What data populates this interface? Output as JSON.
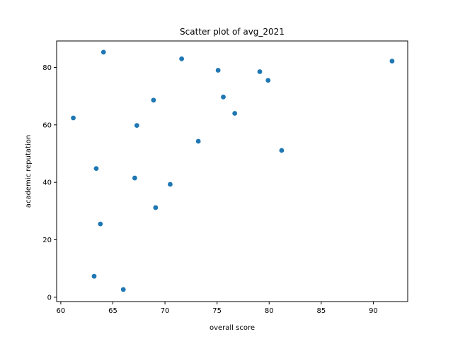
{
  "chart_data": {
    "type": "scatter",
    "title": "Scatter plot of avg_2021",
    "xlabel": "overall score",
    "ylabel": "academic reputation",
    "xlim": [
      59.6,
      93.3
    ],
    "ylim": [
      -1.5,
      89.2
    ],
    "xticks": [
      60,
      65,
      70,
      75,
      80,
      85,
      90
    ],
    "yticks": [
      0,
      20,
      40,
      60,
      80
    ],
    "grid": false,
    "marker_color": "#1f77b4",
    "points": [
      {
        "x": 61.2,
        "y": 62.4
      },
      {
        "x": 63.2,
        "y": 7.3
      },
      {
        "x": 63.4,
        "y": 44.8
      },
      {
        "x": 63.8,
        "y": 25.5
      },
      {
        "x": 64.1,
        "y": 85.3
      },
      {
        "x": 66.0,
        "y": 2.7
      },
      {
        "x": 67.1,
        "y": 41.5
      },
      {
        "x": 67.3,
        "y": 59.8
      },
      {
        "x": 68.9,
        "y": 68.6
      },
      {
        "x": 69.1,
        "y": 31.2
      },
      {
        "x": 70.5,
        "y": 39.3
      },
      {
        "x": 71.6,
        "y": 83.0
      },
      {
        "x": 73.2,
        "y": 54.3
      },
      {
        "x": 75.1,
        "y": 79.0
      },
      {
        "x": 75.6,
        "y": 69.7
      },
      {
        "x": 76.7,
        "y": 64.0
      },
      {
        "x": 79.1,
        "y": 78.5
      },
      {
        "x": 79.9,
        "y": 75.5
      },
      {
        "x": 81.2,
        "y": 51.1
      },
      {
        "x": 91.8,
        "y": 82.2
      }
    ]
  }
}
